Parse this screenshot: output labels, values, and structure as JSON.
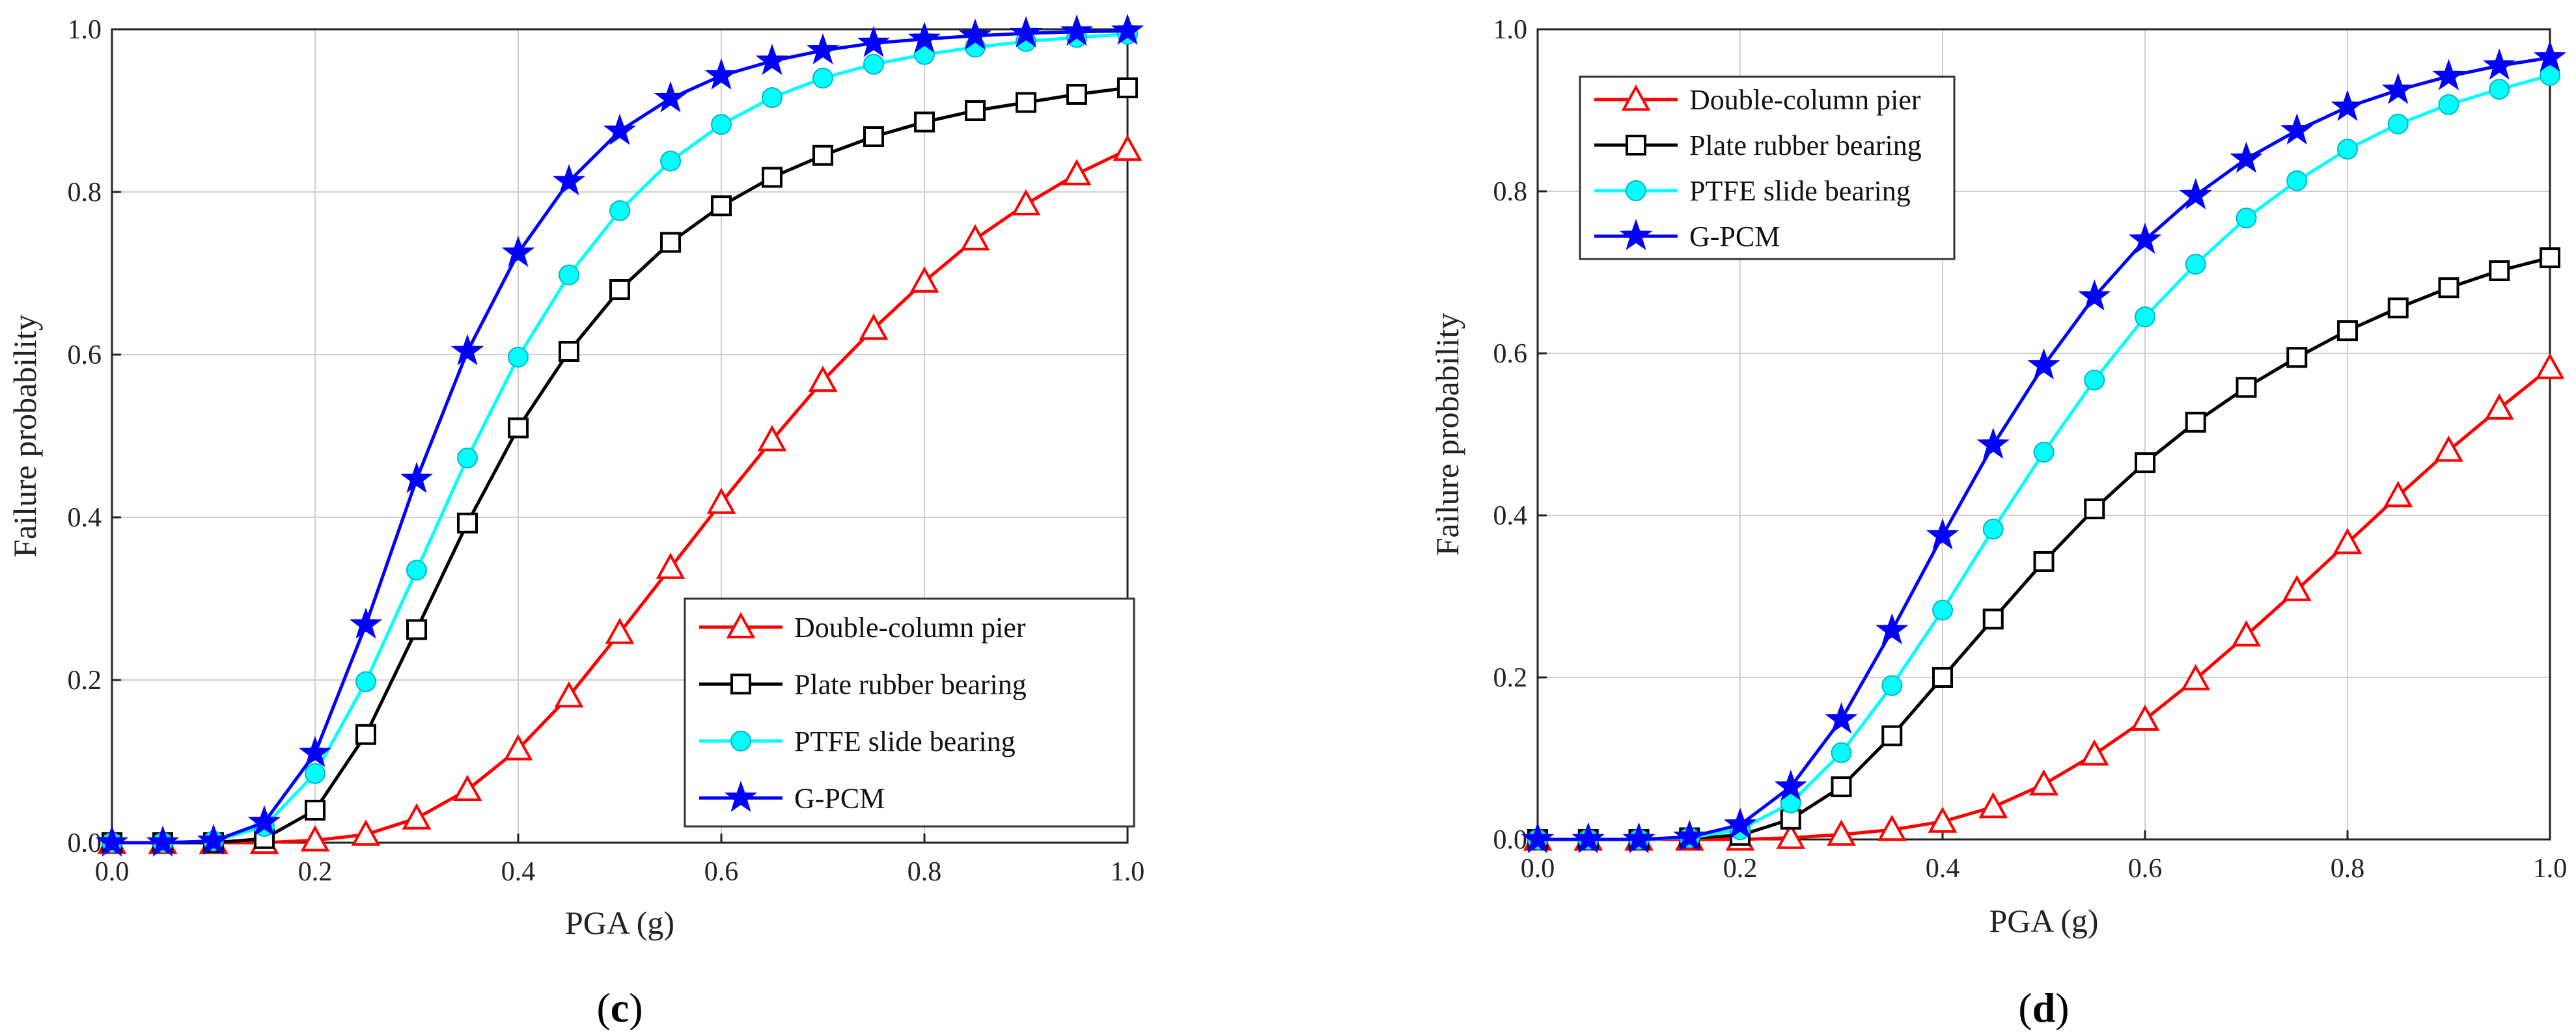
{
  "chart_data": [
    {
      "type": "line",
      "panel": "c",
      "caption": {
        "open": "(",
        "letter": "c",
        "close": ")"
      },
      "xlabel": "PGA (g)",
      "ylabel": "Failure probability",
      "xlim": [
        0.0,
        1.0
      ],
      "ylim": [
        0.0,
        1.0
      ],
      "grid": true,
      "legend_position": "bottom-right",
      "x_ticks": [
        "0.0",
        "0.2",
        "0.4",
        "0.6",
        "0.8",
        "1.0"
      ],
      "y_ticks": [
        "0.0",
        "0.2",
        "0.4",
        "0.6",
        "0.8",
        "1.0"
      ],
      "x": [
        0,
        0.05,
        0.1,
        0.15,
        0.2,
        0.25,
        0.3,
        0.35,
        0.4,
        0.45,
        0.5,
        0.55,
        0.6,
        0.65,
        0.7,
        0.75,
        0.8,
        0.85,
        0.9,
        0.95,
        1.0
      ],
      "series": [
        {
          "name": "Double-column pier",
          "color": "#ff0000",
          "marker": "triangle",
          "values": [
            0,
            0,
            0,
            0,
            0.003,
            0.01,
            0.03,
            0.065,
            0.115,
            0.18,
            0.258,
            0.338,
            0.418,
            0.495,
            0.568,
            0.632,
            0.69,
            0.742,
            0.785,
            0.822,
            0.852
          ]
        },
        {
          "name": "Plate rubber bearing",
          "color": "#000000",
          "marker": "square",
          "values": [
            0,
            0,
            0,
            0.005,
            0.04,
            0.133,
            0.262,
            0.393,
            0.51,
            0.604,
            0.68,
            0.738,
            0.783,
            0.818,
            0.845,
            0.868,
            0.886,
            0.9,
            0.91,
            0.92,
            0.928
          ]
        },
        {
          "name": "PTFE slide bearing",
          "color": "#00ffff",
          "marker": "circle",
          "values": [
            0,
            0,
            0.002,
            0.02,
            0.085,
            0.198,
            0.335,
            0.473,
            0.597,
            0.698,
            0.777,
            0.838,
            0.883,
            0.916,
            0.94,
            0.957,
            0.969,
            0.978,
            0.985,
            0.99,
            0.994
          ]
        },
        {
          "name": "G-PCM",
          "color": "#0000ff",
          "marker": "star",
          "values": [
            0,
            0,
            0.002,
            0.025,
            0.11,
            0.268,
            0.447,
            0.604,
            0.725,
            0.813,
            0.875,
            0.915,
            0.943,
            0.961,
            0.974,
            0.983,
            0.988,
            0.992,
            0.995,
            0.997,
            0.998
          ]
        }
      ]
    },
    {
      "type": "line",
      "panel": "d",
      "caption": {
        "open": "(",
        "letter": "d",
        "close": ")"
      },
      "xlabel": "PGA (g)",
      "ylabel": "Failure probability",
      "xlim": [
        0.0,
        1.0
      ],
      "ylim": [
        0.0,
        1.0
      ],
      "grid": true,
      "legend_position": "top-left",
      "x_ticks": [
        "0.0",
        "0.2",
        "0.4",
        "0.6",
        "0.8",
        "1.0"
      ],
      "y_ticks": [
        "0.0",
        "0.2",
        "0.4",
        "0.6",
        "0.8",
        "1.0"
      ],
      "x": [
        0,
        0.05,
        0.1,
        0.15,
        0.2,
        0.25,
        0.3,
        0.35,
        0.4,
        0.45,
        0.5,
        0.55,
        0.6,
        0.65,
        0.7,
        0.75,
        0.8,
        0.85,
        0.9,
        0.95,
        1.0
      ],
      "series": [
        {
          "name": "Double-column pier",
          "color": "#ff0000",
          "marker": "triangle",
          "values": [
            0,
            0,
            0,
            0,
            0,
            0.002,
            0.006,
            0.012,
            0.022,
            0.04,
            0.068,
            0.105,
            0.148,
            0.198,
            0.252,
            0.308,
            0.366,
            0.424,
            0.48,
            0.532,
            0.582
          ]
        },
        {
          "name": "Plate rubber bearing",
          "color": "#000000",
          "marker": "square",
          "values": [
            0,
            0,
            0,
            0.002,
            0.005,
            0.025,
            0.065,
            0.128,
            0.2,
            0.272,
            0.343,
            0.408,
            0.465,
            0.515,
            0.558,
            0.595,
            0.628,
            0.656,
            0.681,
            0.702,
            0.718
          ]
        },
        {
          "name": "PTFE slide bearing",
          "color": "#00ffff",
          "marker": "circle",
          "values": [
            0,
            0,
            0,
            0.002,
            0.012,
            0.045,
            0.107,
            0.19,
            0.283,
            0.383,
            0.478,
            0.567,
            0.645,
            0.71,
            0.767,
            0.813,
            0.852,
            0.883,
            0.907,
            0.926,
            0.943
          ]
        },
        {
          "name": "G-PCM",
          "color": "#0000ff",
          "marker": "star",
          "values": [
            0,
            0,
            0,
            0.003,
            0.018,
            0.065,
            0.148,
            0.258,
            0.375,
            0.487,
            0.585,
            0.67,
            0.74,
            0.795,
            0.84,
            0.875,
            0.904,
            0.925,
            0.942,
            0.955,
            0.965
          ]
        }
      ]
    }
  ]
}
